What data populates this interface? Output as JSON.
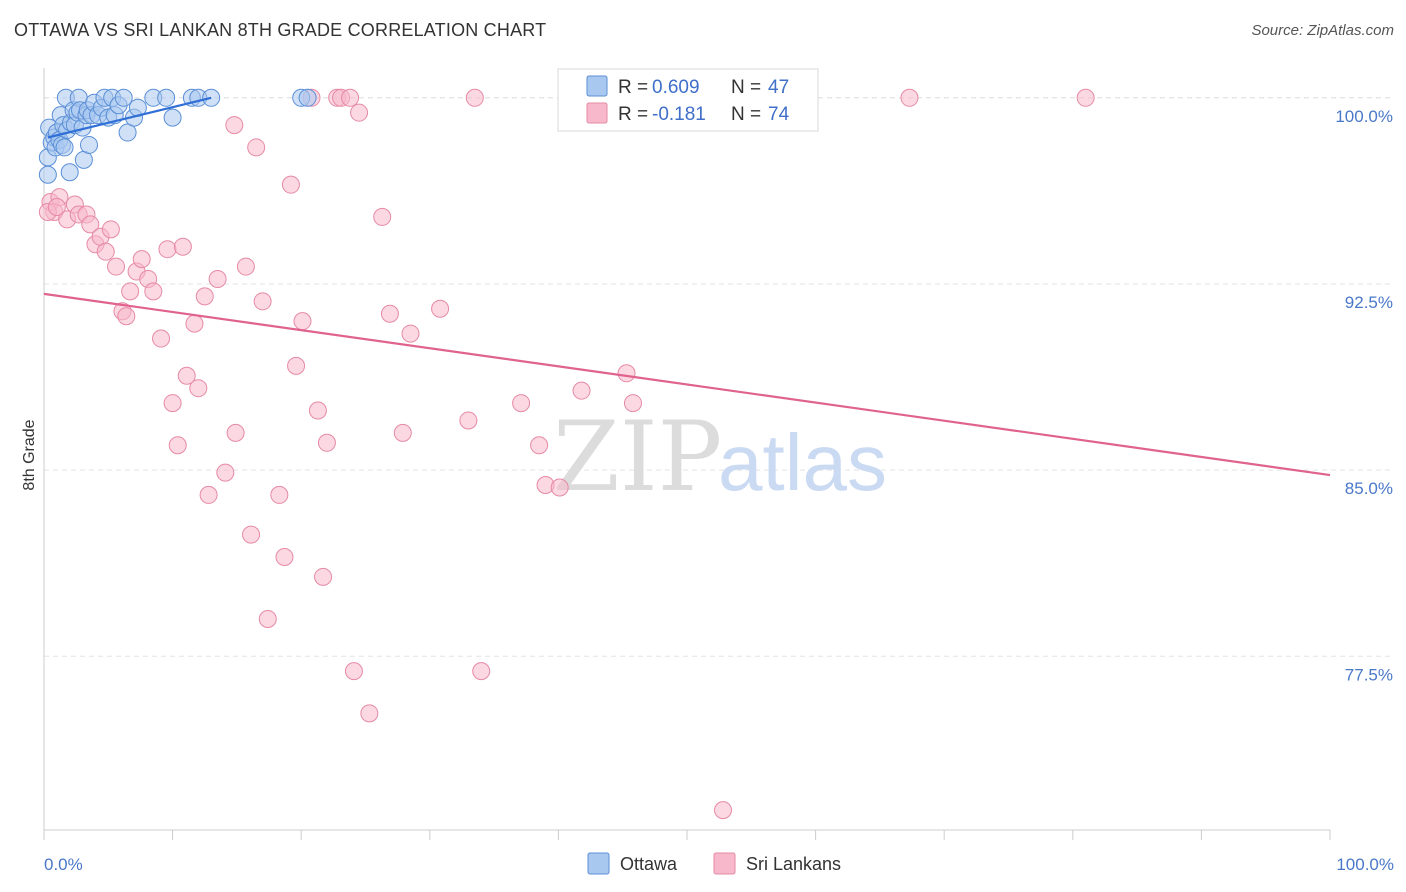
{
  "header": {
    "title": "OTTAWA VS SRI LANKAN 8TH GRADE CORRELATION CHART",
    "source": "Source: ZipAtlas.com"
  },
  "watermark": {
    "zip": "ZIP",
    "atlas": "atlas"
  },
  "legend": {
    "r_label": "R =",
    "n_label": "N =",
    "entries": [
      {
        "name": "Ottawa",
        "r": "0.609",
        "n": "47"
      },
      {
        "name": "Sri Lankans",
        "r": "-0.181",
        "n": "74"
      }
    ]
  },
  "colors": {
    "ottawa_fill": "#a9c8f0",
    "ottawa_stroke": "#5b8fd6",
    "ottawa_line": "#2f6fd6",
    "srilankan_fill": "#f7b8cb",
    "srilankan_stroke": "#e68aa6",
    "srilankan_line": "#e0628e",
    "grid": "#e3e3e3",
    "tick_label": "#4a78c8"
  },
  "chart_data": {
    "type": "scatter",
    "title": "OTTAWA VS SRI LANKAN 8TH GRADE CORRELATION CHART",
    "xlabel": "",
    "ylabel": "8th Grade",
    "xlim": [
      0,
      100
    ],
    "ylim": [
      70.5,
      101.2
    ],
    "x_tick_labels": [
      "0.0%",
      "100.0%"
    ],
    "y_ticks": [
      100.0,
      92.5,
      85.0,
      77.5
    ],
    "y_tick_labels": [
      "100.0%",
      "92.5%",
      "85.0%",
      "77.5%"
    ],
    "grid": true,
    "series": [
      {
        "name": "Ottawa",
        "r": 0.609,
        "n": 47,
        "trend": {
          "x": [
            0.3,
            13
          ],
          "y": [
            98.4,
            100.0
          ]
        },
        "points": [
          [
            0.3,
            97.6
          ],
          [
            0.3,
            96.9
          ],
          [
            0.4,
            98.8
          ],
          [
            0.6,
            98.2
          ],
          [
            0.8,
            98.4
          ],
          [
            0.9,
            98.0
          ],
          [
            1.0,
            98.6
          ],
          [
            1.2,
            98.3
          ],
          [
            1.3,
            99.3
          ],
          [
            1.4,
            98.1
          ],
          [
            1.5,
            98.9
          ],
          [
            1.6,
            98.0
          ],
          [
            1.7,
            100.0
          ],
          [
            1.8,
            98.7
          ],
          [
            2.0,
            97.0
          ],
          [
            2.1,
            99.0
          ],
          [
            2.3,
            99.5
          ],
          [
            2.4,
            98.9
          ],
          [
            2.6,
            99.4
          ],
          [
            2.7,
            100.0
          ],
          [
            2.8,
            99.5
          ],
          [
            3.0,
            98.8
          ],
          [
            3.1,
            97.5
          ],
          [
            3.3,
            99.3
          ],
          [
            3.4,
            99.5
          ],
          [
            3.5,
            98.1
          ],
          [
            3.7,
            99.3
          ],
          [
            3.9,
            99.8
          ],
          [
            4.2,
            99.3
          ],
          [
            4.5,
            99.6
          ],
          [
            4.7,
            100.0
          ],
          [
            5.0,
            99.2
          ],
          [
            5.3,
            100.0
          ],
          [
            5.5,
            99.3
          ],
          [
            5.8,
            99.7
          ],
          [
            6.2,
            100.0
          ],
          [
            6.5,
            98.6
          ],
          [
            7.0,
            99.2
          ],
          [
            7.3,
            99.6
          ],
          [
            8.5,
            100.0
          ],
          [
            9.5,
            100.0
          ],
          [
            10.0,
            99.2
          ],
          [
            11.5,
            100.0
          ],
          [
            12.0,
            100.0
          ],
          [
            13.0,
            100.0
          ],
          [
            20.0,
            100.0
          ],
          [
            20.5,
            100.0
          ]
        ]
      },
      {
        "name": "Sri Lankans",
        "r": -0.181,
        "n": 74,
        "trend": {
          "x": [
            0,
            100
          ],
          "y": [
            92.1,
            84.8
          ]
        },
        "points": [
          [
            0.5,
            95.8
          ],
          [
            0.8,
            95.4
          ],
          [
            1.2,
            96.0
          ],
          [
            1.8,
            95.1
          ],
          [
            2.4,
            95.7
          ],
          [
            2.7,
            95.3
          ],
          [
            3.3,
            95.3
          ],
          [
            3.6,
            94.9
          ],
          [
            4.0,
            94.1
          ],
          [
            4.4,
            94.4
          ],
          [
            4.8,
            93.8
          ],
          [
            5.2,
            94.7
          ],
          [
            5.6,
            93.2
          ],
          [
            6.1,
            91.4
          ],
          [
            6.4,
            91.2
          ],
          [
            6.7,
            92.2
          ],
          [
            7.2,
            93.0
          ],
          [
            7.6,
            93.5
          ],
          [
            8.1,
            92.7
          ],
          [
            8.5,
            92.2
          ],
          [
            9.1,
            90.3
          ],
          [
            9.6,
            93.9
          ],
          [
            10.0,
            87.7
          ],
          [
            10.4,
            86.0
          ],
          [
            10.8,
            94.0
          ],
          [
            11.1,
            88.8
          ],
          [
            11.7,
            90.9
          ],
          [
            12.0,
            88.3
          ],
          [
            12.5,
            92.0
          ],
          [
            12.8,
            84.0
          ],
          [
            13.5,
            92.7
          ],
          [
            14.1,
            84.9
          ],
          [
            14.9,
            86.5
          ],
          [
            15.7,
            93.2
          ],
          [
            16.1,
            82.4
          ],
          [
            16.5,
            98.0
          ],
          [
            17.0,
            91.8
          ],
          [
            17.4,
            79.0
          ],
          [
            18.3,
            84.0
          ],
          [
            18.7,
            81.5
          ],
          [
            19.2,
            96.5
          ],
          [
            19.6,
            89.2
          ],
          [
            20.1,
            91.0
          ],
          [
            20.8,
            100.0
          ],
          [
            21.3,
            87.4
          ],
          [
            21.7,
            80.7
          ],
          [
            22.0,
            86.1
          ],
          [
            22.8,
            100.0
          ],
          [
            23.1,
            100.0
          ],
          [
            23.8,
            100.0
          ],
          [
            24.1,
            76.9
          ],
          [
            24.5,
            99.4
          ],
          [
            25.3,
            75.2
          ],
          [
            14.8,
            98.9
          ],
          [
            26.3,
            95.2
          ],
          [
            26.9,
            91.3
          ],
          [
            27.9,
            86.5
          ],
          [
            28.5,
            90.5
          ],
          [
            30.8,
            91.5
          ],
          [
            33.0,
            87.0
          ],
          [
            33.5,
            100.0
          ],
          [
            34.0,
            76.9
          ],
          [
            37.1,
            87.7
          ],
          [
            38.5,
            86.0
          ],
          [
            39.0,
            84.4
          ],
          [
            40.1,
            84.3
          ],
          [
            41.8,
            88.2
          ],
          [
            45.3,
            88.9
          ],
          [
            45.8,
            87.7
          ],
          [
            52.8,
            71.3
          ],
          [
            67.3,
            100.0
          ],
          [
            81.0,
            100.0
          ],
          [
            0.3,
            95.4
          ],
          [
            1.0,
            95.6
          ]
        ]
      }
    ]
  }
}
